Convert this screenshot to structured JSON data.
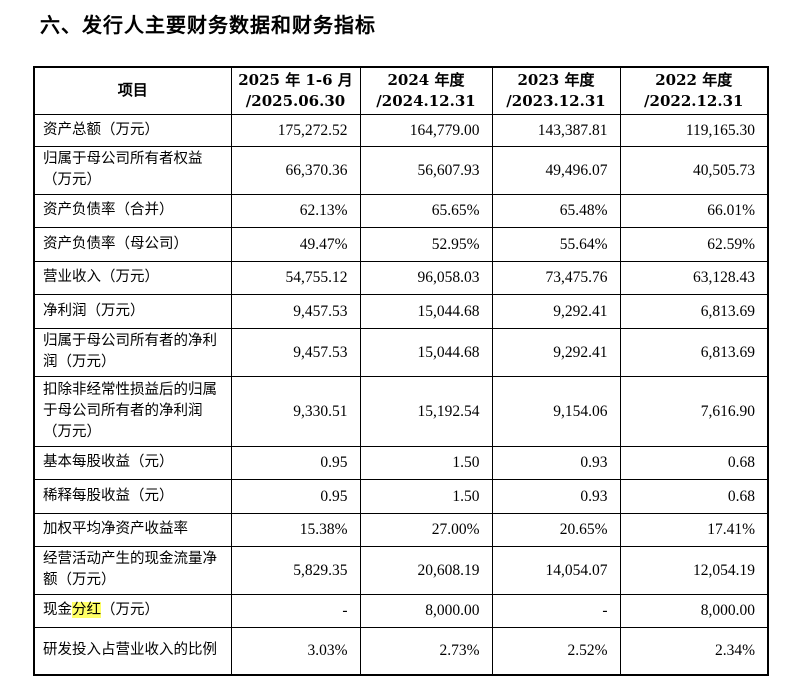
{
  "heading": "六、发行人主要财务数据和财务指标",
  "table": {
    "header": {
      "item": "项目",
      "periods": [
        {
          "line1": "2025 年 1-6 月",
          "line2": "/2025.06.30"
        },
        {
          "line1": "2024 年度",
          "line2": "/2024.12.31"
        },
        {
          "line1": "2023 年度",
          "line2": "/2023.12.31"
        },
        {
          "line1": "2022 年度",
          "line2": "/2022.12.31"
        }
      ]
    },
    "rows": [
      {
        "label": "资产总额（万元）",
        "values": [
          "175,272.52",
          "164,779.00",
          "143,387.81",
          "119,165.30"
        ]
      },
      {
        "label": "归属于母公司所有者权益（万元）",
        "values": [
          "66,370.36",
          "56,607.93",
          "49,496.07",
          "40,505.73"
        ]
      },
      {
        "label": "资产负债率（合并）",
        "values": [
          "62.13%",
          "65.65%",
          "65.48%",
          "66.01%"
        ]
      },
      {
        "label": "资产负债率（母公司）",
        "values": [
          "49.47%",
          "52.95%",
          "55.64%",
          "62.59%"
        ]
      },
      {
        "label": "营业收入（万元）",
        "values": [
          "54,755.12",
          "96,058.03",
          "73,475.76",
          "63,128.43"
        ]
      },
      {
        "label": "净利润（万元）",
        "values": [
          "9,457.53",
          "15,044.68",
          "9,292.41",
          "6,813.69"
        ]
      },
      {
        "label": "归属于母公司所有者的净利润（万元）",
        "values": [
          "9,457.53",
          "15,044.68",
          "9,292.41",
          "6,813.69"
        ]
      },
      {
        "label": "扣除非经常性损益后的归属于母公司所有者的净利润（万元）",
        "values": [
          "9,330.51",
          "15,192.54",
          "9,154.06",
          "7,616.90"
        ]
      },
      {
        "label": "基本每股收益（元）",
        "values": [
          "0.95",
          "1.50",
          "0.93",
          "0.68"
        ]
      },
      {
        "label": "稀释每股收益（元）",
        "values": [
          "0.95",
          "1.50",
          "0.93",
          "0.68"
        ]
      },
      {
        "label": "加权平均净资产收益率",
        "values": [
          "15.38%",
          "27.00%",
          "20.65%",
          "17.41%"
        ]
      },
      {
        "label": "经营活动产生的现金流量净额（万元）",
        "values": [
          "5,829.35",
          "20,608.19",
          "14,054.07",
          "12,054.19"
        ]
      },
      {
        "label_parts": {
          "before": "现金",
          "highlight": "分红",
          "after": "（万元）"
        },
        "values": [
          "-",
          "8,000.00",
          "-",
          "8,000.00"
        ]
      },
      {
        "label": "研发投入占营业收入的比例",
        "values": [
          "3.03%",
          "2.73%",
          "2.52%",
          "2.34%"
        ]
      }
    ],
    "highlight_color": "#ffff66"
  }
}
